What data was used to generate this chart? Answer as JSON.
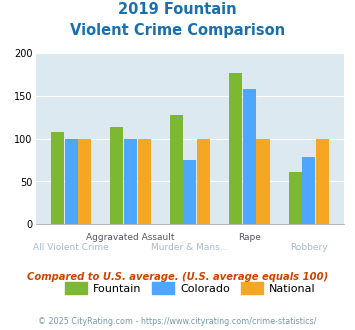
{
  "title_line1": "2019 Fountain",
  "title_line2": "Violent Crime Comparison",
  "categories": [
    "All Violent Crime",
    "Aggravated Assault",
    "Murder & Mans...",
    "Rape",
    "Robbery"
  ],
  "row1_labels": [
    "Aggravated Assault",
    "Rape"
  ],
  "row2_labels": [
    "All Violent Crime",
    "Murder & Mans...",
    "Robbery"
  ],
  "row1_indices": [
    1,
    3
  ],
  "row2_indices": [
    0,
    2,
    4
  ],
  "fountain": [
    108,
    113,
    128,
    176,
    61
  ],
  "colorado": [
    100,
    99,
    75,
    158,
    78
  ],
  "national": [
    100,
    100,
    100,
    100,
    100
  ],
  "fountain_color": "#7db832",
  "colorado_color": "#4da6ff",
  "national_color": "#f5a623",
  "ylim": [
    0,
    200
  ],
  "yticks": [
    0,
    50,
    100,
    150,
    200
  ],
  "title_color": "#1a6faf",
  "background_color": "#dce9f0",
  "note_text": "Compared to U.S. average. (U.S. average equals 100)",
  "note_color": "#cc4400",
  "footer_text": "© 2025 CityRating.com - https://www.cityrating.com/crime-statistics/",
  "footer_color": "#7799aa",
  "legend_labels": [
    "Fountain",
    "Colorado",
    "National"
  ],
  "bar_width": 0.22
}
